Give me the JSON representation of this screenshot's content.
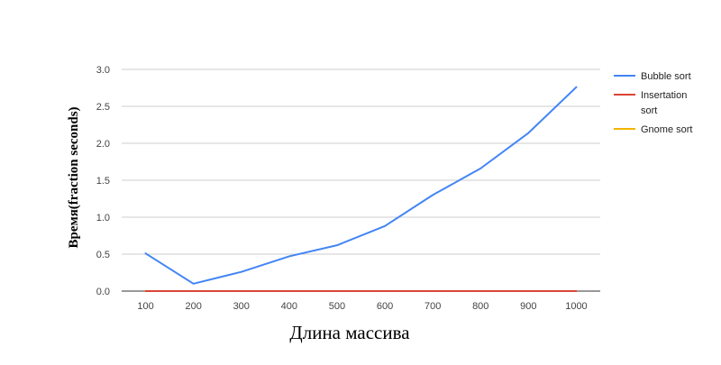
{
  "chart_data": {
    "type": "line",
    "title": "",
    "xlabel": "Длина массива",
    "ylabel": "Время(fraction seconds)",
    "x": [
      100,
      200,
      300,
      400,
      500,
      600,
      700,
      800,
      900,
      1000
    ],
    "x_tick_labels": [
      "100",
      "200",
      "300",
      "400",
      "500",
      "600",
      "700",
      "800",
      "900",
      "1000"
    ],
    "y_ticks": [
      0.0,
      0.5,
      1.0,
      1.5,
      2.0,
      2.5,
      3.0
    ],
    "y_tick_labels": [
      "0.0",
      "0.5",
      "1.0",
      "1.5",
      "2.0",
      "2.5",
      "3.0"
    ],
    "ylim": [
      0,
      3.0
    ],
    "grid": true,
    "legend_position": "right",
    "series": [
      {
        "name": "Bubble sort",
        "legend_lines": [
          "Bubble sort"
        ],
        "color": "#4285f4",
        "values": [
          0.51,
          0.1,
          0.26,
          0.47,
          0.62,
          0.88,
          1.3,
          1.66,
          2.14,
          2.76
        ]
      },
      {
        "name": "Insertation sort",
        "legend_lines": [
          "Insertation",
          "sort"
        ],
        "color": "#db4437",
        "values": [
          0,
          0,
          0,
          0,
          0,
          0,
          0,
          0,
          0,
          0
        ]
      },
      {
        "name": "Gnome sort",
        "legend_lines": [
          "Gnome sort"
        ],
        "color": "#f4b400",
        "values": [
          0,
          0,
          0,
          0,
          0,
          0,
          0,
          0,
          0,
          0
        ]
      }
    ]
  }
}
